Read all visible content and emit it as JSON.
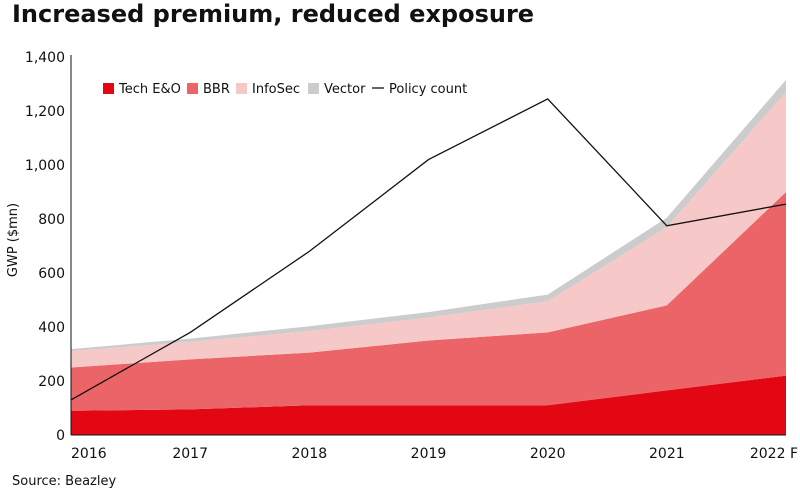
{
  "chart_data": {
    "type": "area",
    "title": "Increased premium, reduced exposure",
    "source": "Source: Beazley",
    "xlabel": "",
    "ylabel": "GWP ($mn)",
    "ylim": [
      0,
      1400
    ],
    "yticks": [
      "0",
      "200",
      "400",
      "600",
      "800",
      "1,000",
      "1,200",
      "1,400"
    ],
    "ytick_values": [
      0,
      200,
      400,
      600,
      800,
      1000,
      1200,
      1400
    ],
    "categories": [
      "2016",
      "2017",
      "2018",
      "2019",
      "2020",
      "2021",
      "2022 F"
    ],
    "stacked": true,
    "series": [
      {
        "name": "Tech E&O",
        "color": "#e30613",
        "values": [
          90,
          95,
          110,
          110,
          110,
          165,
          220
        ]
      },
      {
        "name": "BBR",
        "color": "#eb6467",
        "values": [
          160,
          185,
          195,
          240,
          270,
          315,
          680
        ]
      },
      {
        "name": "InfoSec",
        "color": "#f7c8c8",
        "values": [
          60,
          65,
          80,
          85,
          115,
          290,
          370
        ]
      },
      {
        "name": "Vector",
        "color": "#cccccc",
        "values": [
          8,
          12,
          18,
          20,
          25,
          35,
          45
        ]
      }
    ],
    "line_series": {
      "name": "Policy count",
      "color": "#111111",
      "values": [
        130,
        380,
        680,
        1020,
        1245,
        775,
        855
      ]
    },
    "legend": [
      "Tech E&O",
      "BBR",
      "InfoSec",
      "Vector",
      "Policy count"
    ],
    "legend_position": "top-left"
  }
}
